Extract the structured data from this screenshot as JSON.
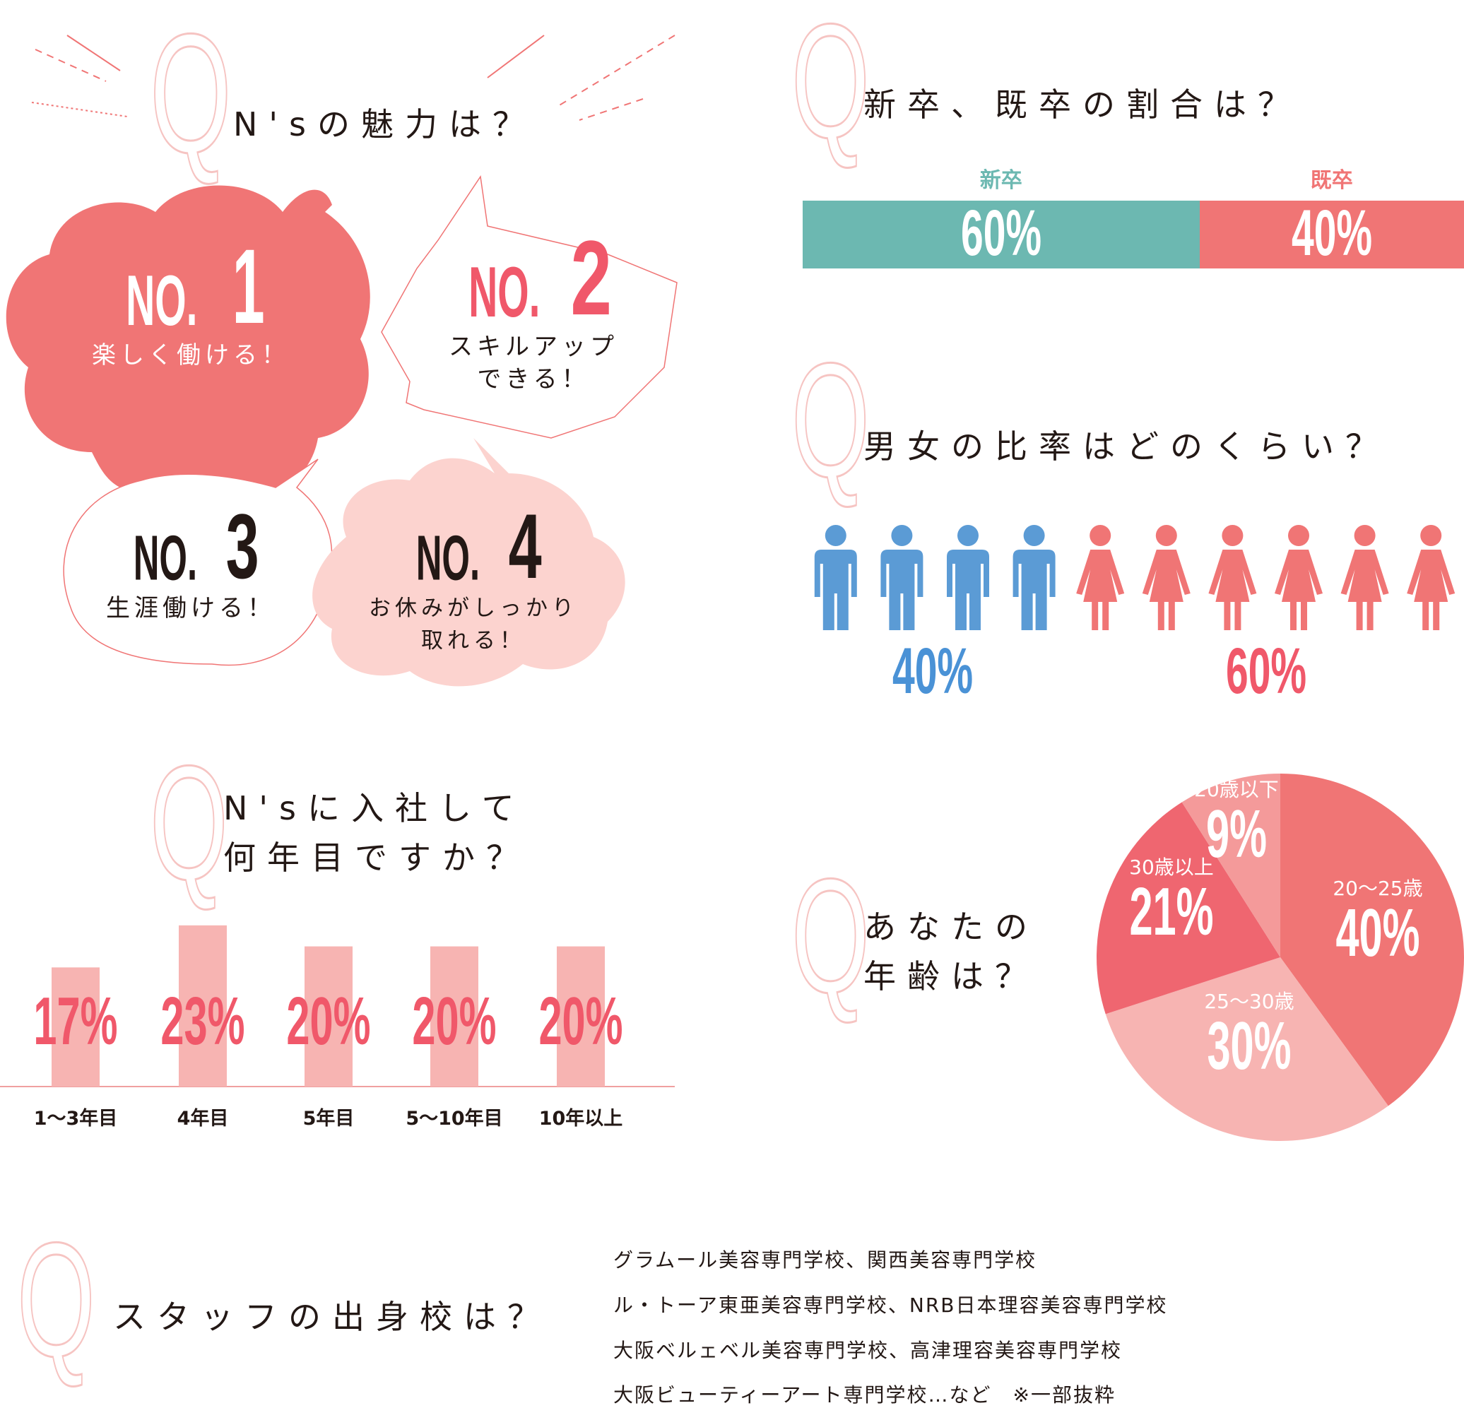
{
  "q_mark": "Q",
  "q1": {
    "title": "N'sの魅力は？",
    "items": [
      {
        "no": "NO.",
        "num": "1",
        "label": "楽しく働ける！"
      },
      {
        "no": "NO.",
        "num": "2",
        "label1": "スキルアップ",
        "label2": "できる！"
      },
      {
        "no": "NO.",
        "num": "3",
        "label": "生涯働ける！"
      },
      {
        "no": "NO.",
        "num": "4",
        "label1": "お休みがしっかり",
        "label2": "取れる！"
      }
    ]
  },
  "q2": {
    "title": "新卒、既卒の割合は？",
    "chart_data": {
      "type": "bar",
      "orientation": "stacked-horizontal",
      "categories": [
        "新卒",
        "既卒"
      ],
      "values": [
        60,
        40
      ],
      "value_labels": [
        "60%",
        "40%"
      ],
      "colors": [
        "#6cb8b1",
        "#f07575"
      ]
    }
  },
  "q3": {
    "title": "男女の比率はどのくらい？",
    "chart_data": {
      "type": "pictogram",
      "male_count": 4,
      "female_count": 6,
      "male_label": "40%",
      "female_label": "60%",
      "male_color": "#5b9bd5",
      "female_color": "#f07575"
    }
  },
  "q4": {
    "title_line1": "N'sに入社して",
    "title_line2": "何年目ですか？",
    "chart_data": {
      "type": "bar",
      "categories": [
        "1〜3年目",
        "4年目",
        "5年目",
        "5〜10年目",
        "10年以上"
      ],
      "values": [
        17,
        23,
        20,
        20,
        20
      ],
      "value_labels": [
        "17%",
        "23%",
        "20%",
        "20%",
        "20%"
      ],
      "ylim": [
        0,
        25
      ],
      "bar_color": "#f7b4b2",
      "label_color": "#f0586a"
    }
  },
  "q5": {
    "title_line1": "あなたの",
    "title_line2": "年齢は？",
    "chart_data": {
      "type": "pie",
      "slices": [
        {
          "label": "20〜25歳",
          "value": 40,
          "value_label": "40%",
          "color": "#f07575"
        },
        {
          "label": "25〜30歳",
          "value": 30,
          "value_label": "30%",
          "color": "#f7b4b2"
        },
        {
          "label": "30歳以上",
          "value": 21,
          "value_label": "21%",
          "color": "#ef6670"
        },
        {
          "label": "20歳以下",
          "value": 9,
          "value_label": "9%",
          "color": "#f49a9a"
        }
      ]
    }
  },
  "q6": {
    "title": "スタッフの出身校は？",
    "schools": [
      "グラムール美容専門学校、関西美容専門学校",
      "ル・トーア東亜美容専門学校、NRB日本理容美容専門学校",
      "大阪ベルェベル美容専門学校、高津理容美容専門学校",
      "大阪ビューティーアート専門学校…など　※一部抜粋"
    ]
  }
}
